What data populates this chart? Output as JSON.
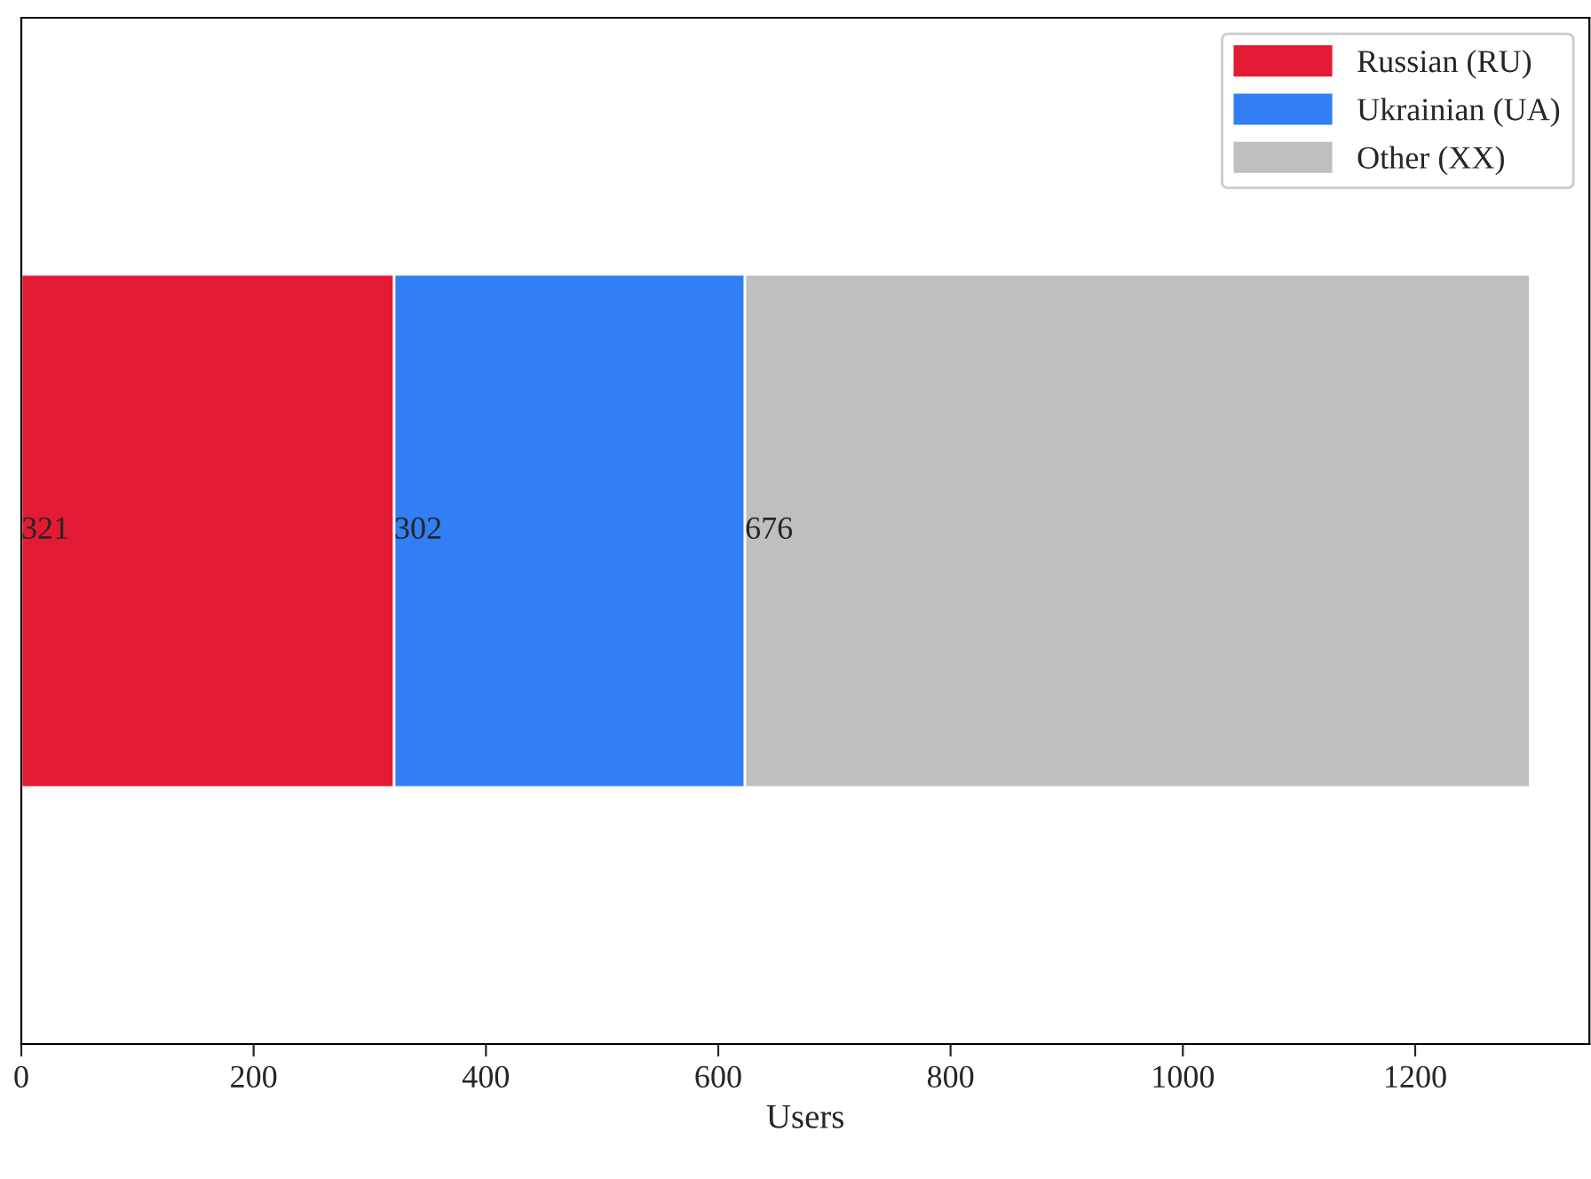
{
  "chart_data": {
    "type": "bar",
    "orientation": "horizontal",
    "stacked": true,
    "categories": [
      null
    ],
    "series": [
      {
        "name": "Russian (RU)",
        "color": "#e31a33",
        "values": [
          321
        ]
      },
      {
        "name": "Ukrainian (UA)",
        "color": "#327ef5",
        "values": [
          302
        ]
      },
      {
        "name": "Other (XX)",
        "color": "#bfbfbf",
        "values": [
          676
        ]
      }
    ],
    "xlabel": "Users",
    "xlim": [
      0,
      1350
    ],
    "xticks": [
      0,
      200,
      400,
      600,
      800,
      1000,
      1200
    ],
    "tick_labels": "x",
    "data_labels": true,
    "legend": "top right",
    "grid": false
  }
}
